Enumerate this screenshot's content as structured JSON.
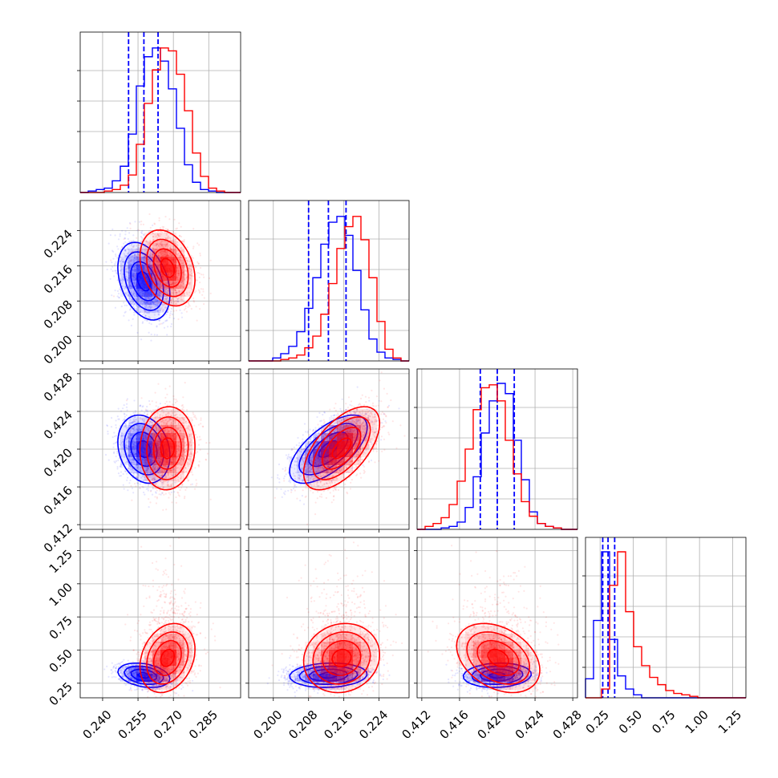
{
  "chart_data": {
    "type": "corner",
    "parameters": [
      {
        "ticks": [
          0.24,
          0.255,
          0.27,
          0.285
        ],
        "tick_labels": [
          "0.240",
          "0.255",
          "0.270",
          "0.285"
        ],
        "range": [
          0.2305,
          0.2985
        ]
      },
      {
        "ticks": [
          0.2,
          0.208,
          0.216,
          0.224
        ],
        "tick_labels": [
          "0.200",
          "0.208",
          "0.216",
          "0.224"
        ],
        "range": [
          0.1944,
          0.2308
        ]
      },
      {
        "ticks": [
          0.412,
          0.416,
          0.42,
          0.424,
          0.428
        ],
        "tick_labels": [
          "0.412",
          "0.416",
          "0.420",
          "0.424",
          "0.428"
        ],
        "range": [
          0.4115,
          0.4285
        ]
      },
      {
        "ticks": [
          0.25,
          0.5,
          0.75,
          1.0,
          1.25
        ],
        "tick_labels": [
          "0.25",
          "0.50",
          "0.75",
          "1.00",
          "1.25"
        ],
        "range": [
          0.14,
          1.35
        ]
      }
    ],
    "grid": true,
    "series": [
      {
        "color": "#0000ff",
        "quantile_lines": true,
        "means": [
          0.2575,
          0.2125,
          0.42,
          0.31
        ],
        "sigmas": [
          0.0055,
          0.0044,
          0.0018,
          0.045
        ],
        "correlations": [
          [
            1,
            -0.35,
            -0.2,
            -0.3
          ],
          [
            -0.35,
            1,
            0.65,
            0.1
          ],
          [
            -0.2,
            0.65,
            1,
            0.1
          ],
          [
            -0.3,
            0.1,
            0.1,
            1
          ]
        ],
        "quantiles": [
          [
            0.251,
            0.2575,
            0.2635
          ],
          [
            0.208,
            0.2125,
            0.2165
          ],
          [
            0.4182,
            0.42,
            0.4218
          ],
          [
            0.27,
            0.31,
            0.36
          ]
        ],
        "histograms": [
          [
            0.0,
            0.01,
            0.02,
            0.03,
            0.08,
            0.18,
            0.4,
            0.73,
            0.93,
            0.99,
            0.9,
            0.71,
            0.44,
            0.19,
            0.07,
            0.02,
            0.01,
            0.0,
            0.0,
            0.0
          ],
          [
            0.0,
            0.0,
            0.0,
            0.02,
            0.05,
            0.1,
            0.2,
            0.36,
            0.57,
            0.8,
            0.95,
            0.99,
            0.86,
            0.62,
            0.35,
            0.15,
            0.06,
            0.02,
            0.01,
            0.0
          ],
          [
            0.0,
            0.0,
            0.0,
            0.01,
            0.02,
            0.05,
            0.15,
            0.36,
            0.66,
            0.88,
            1.0,
            0.93,
            0.61,
            0.34,
            0.12,
            0.04,
            0.02,
            0.01,
            0.0,
            0.0
          ],
          [
            0.13,
            0.53,
            1.0,
            0.4,
            0.15,
            0.06,
            0.02,
            0.0,
            0.0,
            0.0,
            0.0,
            0.0,
            0.0,
            0.0,
            0.0,
            0.0,
            0.0,
            0.0,
            0.0,
            0.0
          ]
        ]
      },
      {
        "color": "#ff0000",
        "quantile_lines": false,
        "means": [
          0.2675,
          0.2155,
          0.4201,
          0.44
        ],
        "sigmas": [
          0.0058,
          0.0043,
          0.0022,
          0.13
        ],
        "correlations": [
          [
            1,
            -0.3,
            0.05,
            0.25
          ],
          [
            -0.3,
            1,
            0.6,
            0.1
          ],
          [
            0.05,
            0.6,
            1,
            -0.35
          ],
          [
            0.25,
            0.1,
            -0.35,
            1
          ]
        ],
        "quantiles": [
          [
            0.2615,
            0.2675,
            0.2735
          ],
          [
            0.2115,
            0.2155,
            0.2195
          ],
          [
            0.4179,
            0.4201,
            0.4223
          ],
          [
            0.35,
            0.44,
            0.58
          ]
        ],
        "histograms": [
          [
            0.0,
            0.0,
            0.0,
            0.01,
            0.02,
            0.05,
            0.12,
            0.33,
            0.61,
            0.84,
            0.99,
            0.97,
            0.81,
            0.56,
            0.27,
            0.11,
            0.03,
            0.01,
            0.0,
            0.0
          ],
          [
            0.0,
            0.0,
            0.0,
            0.0,
            0.01,
            0.02,
            0.04,
            0.09,
            0.17,
            0.32,
            0.53,
            0.77,
            0.92,
            0.99,
            0.83,
            0.57,
            0.27,
            0.08,
            0.02,
            0.0
          ],
          [
            0.0,
            0.02,
            0.04,
            0.08,
            0.17,
            0.33,
            0.55,
            0.82,
            0.97,
            0.99,
            0.88,
            0.61,
            0.38,
            0.19,
            0.09,
            0.04,
            0.02,
            0.01,
            0.0,
            0.0
          ],
          [
            0.0,
            0.0,
            0.06,
            0.77,
            1.0,
            0.59,
            0.35,
            0.22,
            0.14,
            0.09,
            0.05,
            0.03,
            0.02,
            0.01,
            0.0,
            0.0,
            0.0,
            0.0,
            0.0,
            0.0
          ]
        ]
      }
    ]
  }
}
